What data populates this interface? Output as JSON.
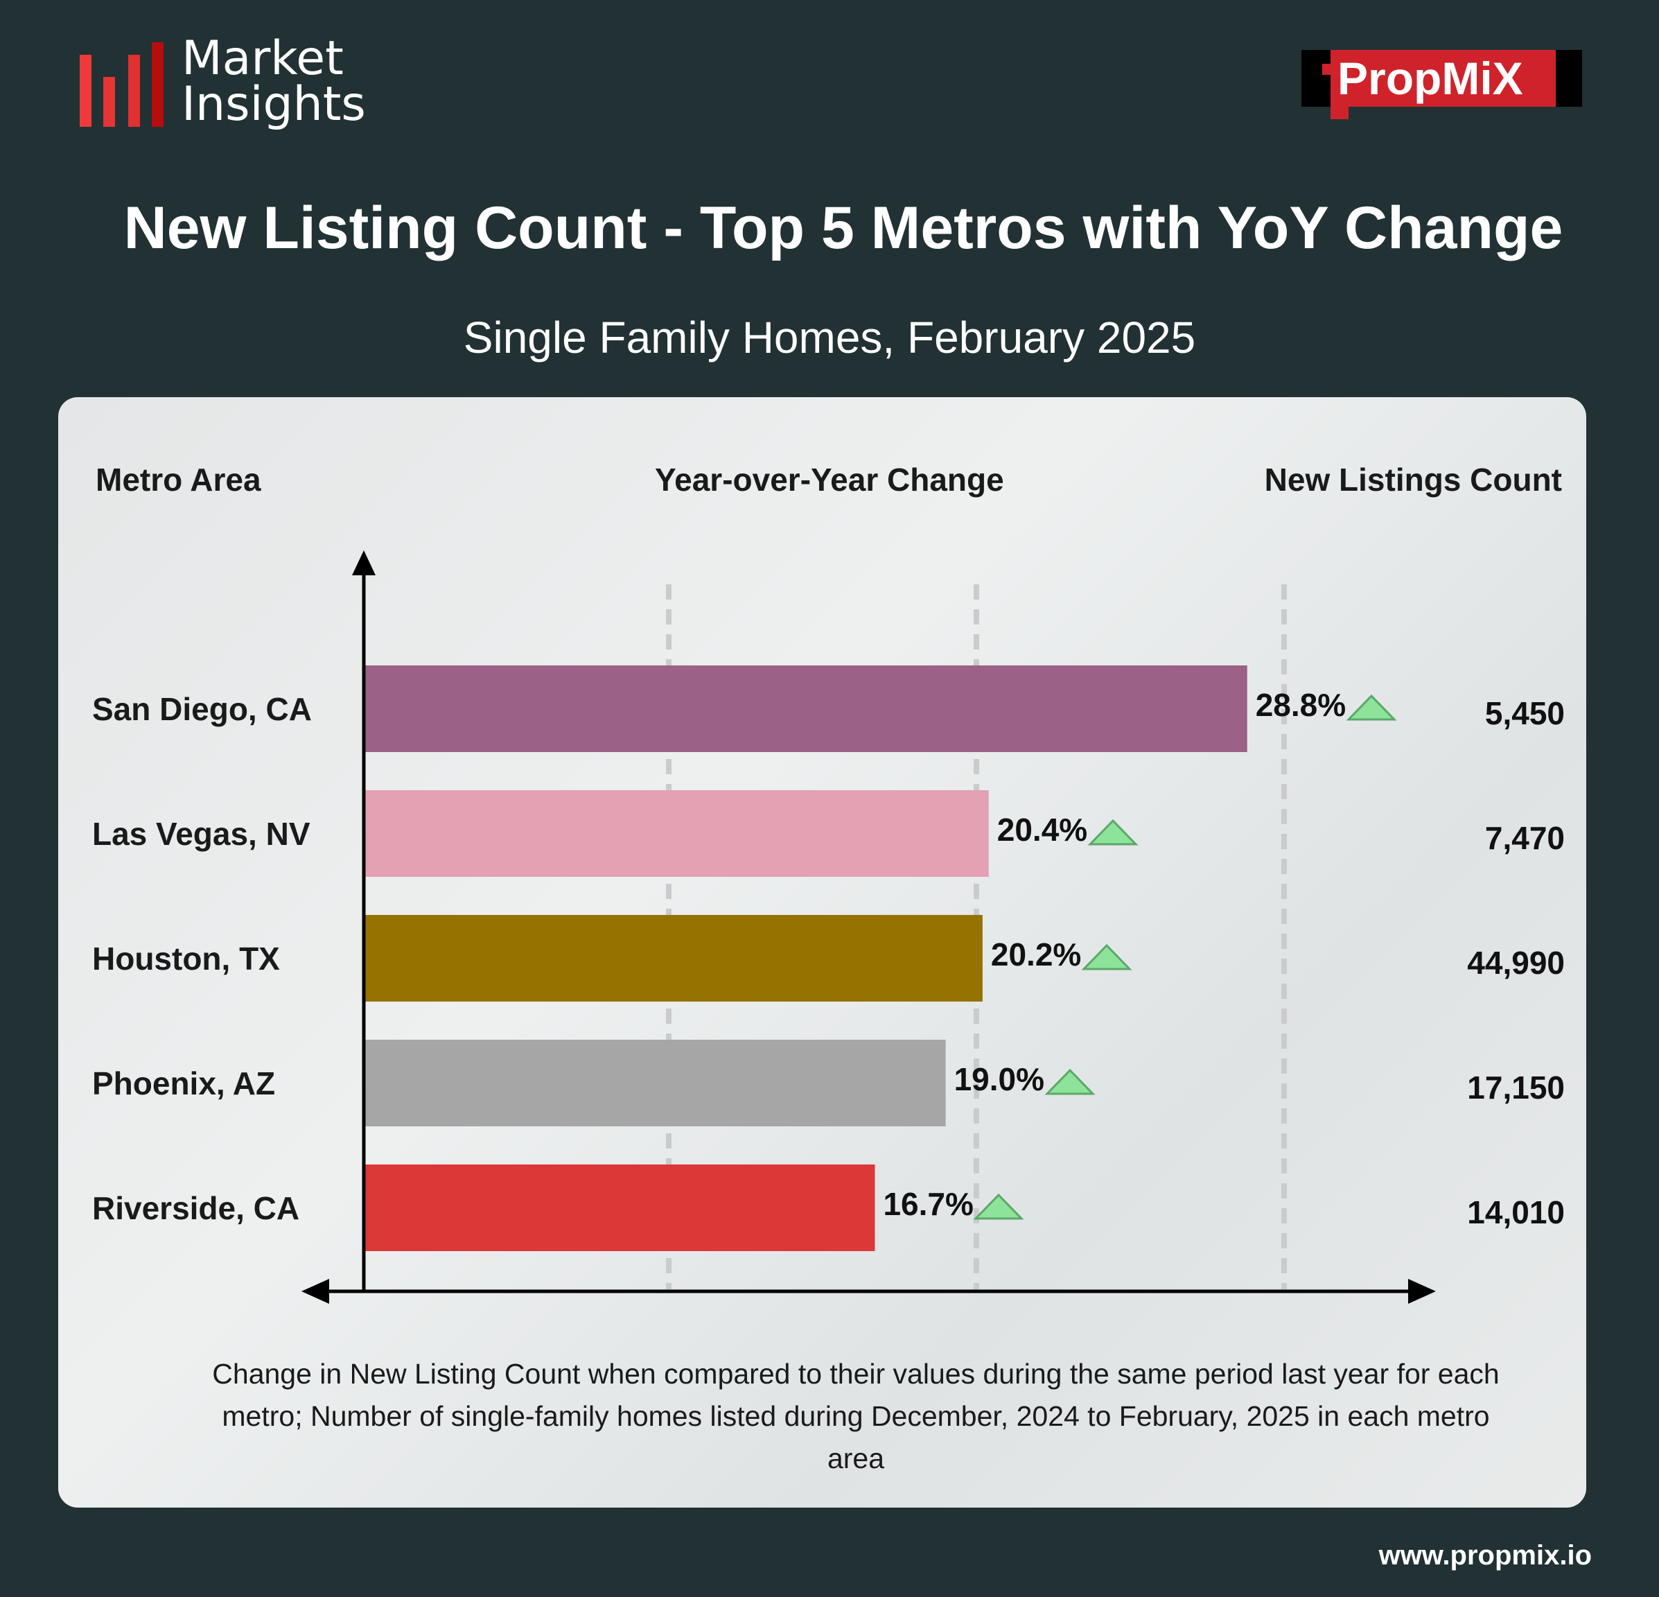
{
  "brand": {
    "logo_text": "Market Insights",
    "partner_logo_text": "PropMiX",
    "website": "www.propmix.io"
  },
  "colors": {
    "background": "#213134",
    "card": "#e6e8e9",
    "up_arrow": "#8ee39a"
  },
  "chart_data": {
    "type": "bar",
    "orientation": "horizontal",
    "title": "New Listing Count - Top 5 Metros with YoY Change",
    "subtitle": "Single Family Homes, February 2025",
    "column_headers": {
      "metro": "Metro Area",
      "yoy": "Year-over-Year Change",
      "count": "New Listings Count"
    },
    "xlim": [
      0,
      30
    ],
    "grid": true,
    "gridlines": [
      10,
      20,
      30
    ],
    "categories": [
      "San Diego, CA",
      "Las Vegas, NV",
      "Houston, TX",
      "Phoenix, AZ",
      "Riverside, CA"
    ],
    "values": [
      28.8,
      20.4,
      20.2,
      19.0,
      16.7
    ],
    "value_labels": [
      "28.8%",
      "20.4%",
      "20.2%",
      "19.0%",
      "16.7%"
    ],
    "bar_colors": [
      "#9c6186",
      "#e3a1b3",
      "#967200",
      "#a6a6a6",
      "#dc3838"
    ],
    "counts": [
      "5,450",
      "7,470",
      "44,990",
      "17,150",
      "14,010"
    ],
    "trend": [
      "up",
      "up",
      "up",
      "up",
      "up"
    ],
    "footnote": "Change in New Listing Count when compared to their values during the same period last year for each metro;  Number of single-family homes listed during December, 2024 to February, 2025 in each metro area"
  }
}
